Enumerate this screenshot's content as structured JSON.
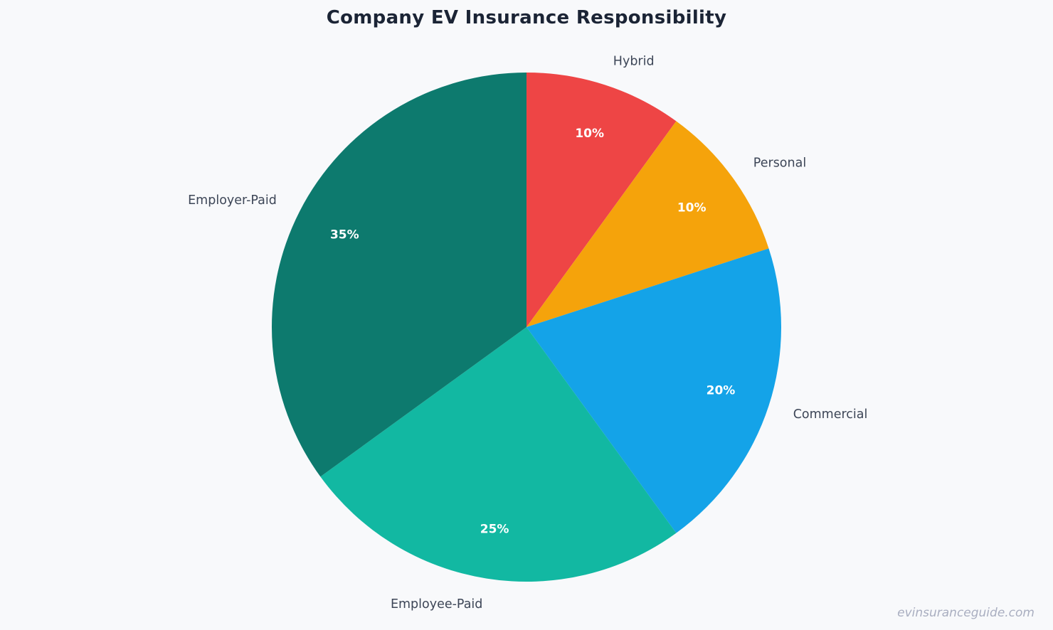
{
  "page": {
    "background_color": "#f8f9fb",
    "title": "Company EV Insurance Responsibility",
    "watermark": "evinsuranceguide.com"
  },
  "chart_data": {
    "type": "pie",
    "title": "Company EV Insurance Responsibility",
    "categories": [
      "Hybrid",
      "Personal",
      "Commercial",
      "Employee-Paid",
      "Employer-Paid"
    ],
    "values": [
      10,
      10,
      20,
      25,
      35
    ],
    "unit": "%",
    "slice_labels": [
      "10%",
      "10%",
      "20%",
      "25%",
      "35%"
    ],
    "colors": [
      "#ee4545",
      "#f5a30b",
      "#14a3e8",
      "#12b8a2",
      "#0d7a6e"
    ],
    "start_angle_deg": 0,
    "direction": "clockwise",
    "legend": "none",
    "label_position": "outside",
    "value_label_position": "inside",
    "title_color": "#1b2435",
    "category_label_color": "#3d4657",
    "value_label_color": "#ffffff"
  }
}
